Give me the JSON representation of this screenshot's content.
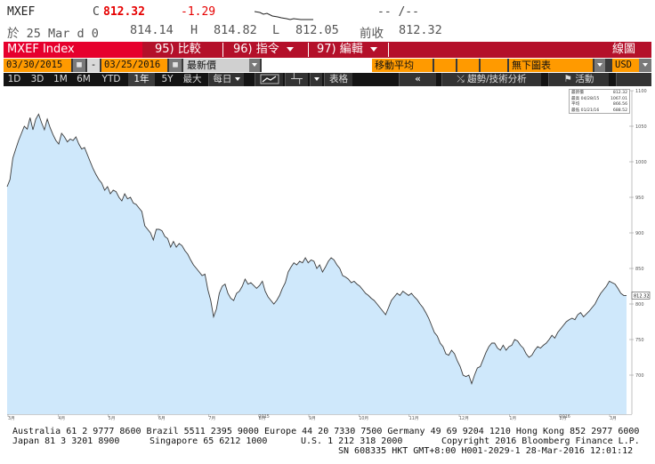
{
  "header": {
    "ticker": "MXEF",
    "close_prefix": "C",
    "last": "812.32",
    "change": "-1.29",
    "sparkline_text": "-- /--",
    "line2": {
      "date_label": "於 25 Mar d 0",
      "open": "814.14",
      "high_label": "H",
      "high": "814.82",
      "low_label": "L",
      "low": "812.05",
      "prev_label": "前收",
      "prev": "812.32"
    }
  },
  "menubar": {
    "ticker": "MXEF Index",
    "items": [
      {
        "num": "95)",
        "label": "比較"
      },
      {
        "num": "96)",
        "label": "指令"
      },
      {
        "num": "97)",
        "label": "編輯"
      }
    ],
    "right_label": "線圖"
  },
  "controls": {
    "start_date": "03/30/2015",
    "dash": "-",
    "end_date": "03/25/2016",
    "price_type": "最新價",
    "moving_avg_label": "移動平均",
    "lower_chart": "無下圖表",
    "currency": "USD"
  },
  "toolbar": {
    "periods": [
      "1D",
      "3D",
      "1M",
      "6M",
      "YTD",
      "1年",
      "5Y",
      "最大"
    ],
    "selected_period": "1年",
    "frequency": "每日",
    "table_label": "表格",
    "nav_left": "«",
    "analysis_label": "趨勢/技術分析",
    "events_label": "活動"
  },
  "colors": {
    "menubar_bg": "#b4102a",
    "ticker_bg": "#e6002d",
    "orange": "#ff9a00",
    "price_up": "#e60000",
    "area_fill": "#cfe8fb",
    "line": "#3a3a3a"
  },
  "legend": {
    "rows": [
      {
        "label": "最新價",
        "value": "812.32"
      },
      {
        "label": "最高 04/28/15",
        "value": "1067.01"
      },
      {
        "label": "平均",
        "value": "866.56"
      },
      {
        "label": "最低 01/21/16",
        "value": "688.52"
      }
    ]
  },
  "chart_data": {
    "type": "area",
    "title": "",
    "xlabel": "",
    "ylabel": "",
    "ylim": [
      645,
      1100
    ],
    "y_ticks": [
      700,
      750,
      800,
      850,
      900,
      950,
      1000,
      1050,
      1100
    ],
    "x_ticks": [
      "3月",
      "4月",
      "5月",
      "6月",
      "7月",
      "8月",
      "9月",
      "10月",
      "11月",
      "12月",
      "1月",
      "2月",
      "3月"
    ],
    "x_year_labels": [
      {
        "after": "8月",
        "label": "2015"
      },
      {
        "after": "2月",
        "label": "2016"
      }
    ],
    "last_value_label": "812.32",
    "grid": false,
    "series": [
      {
        "values": [
          965,
          975,
          1005,
          1018,
          1030,
          1040,
          1050,
          1046,
          1062,
          1045,
          1060,
          1067,
          1055,
          1045,
          1060,
          1048,
          1038,
          1030,
          1025,
          1040,
          1035,
          1028,
          1032,
          1030,
          1035,
          1025,
          1018,
          1020,
          1010,
          1000,
          990,
          982,
          975,
          970,
          960,
          965,
          955,
          960,
          958,
          950,
          945,
          955,
          948,
          950,
          942,
          940,
          935,
          930,
          910,
          905,
          900,
          890,
          905,
          905,
          903,
          895,
          892,
          880,
          888,
          880,
          885,
          882,
          875,
          870,
          862,
          855,
          850,
          845,
          840,
          842,
          820,
          805,
          782,
          793,
          815,
          825,
          828,
          815,
          808,
          805,
          815,
          818,
          825,
          835,
          828,
          830,
          826,
          822,
          826,
          832,
          818,
          810,
          805,
          800,
          805,
          812,
          822,
          830,
          845,
          852,
          858,
          855,
          860,
          858,
          865,
          858,
          862,
          860,
          850,
          855,
          845,
          852,
          860,
          865,
          862,
          855,
          850,
          840,
          838,
          835,
          830,
          832,
          828,
          825,
          820,
          815,
          812,
          808,
          805,
          800,
          795,
          790,
          785,
          795,
          805,
          810,
          815,
          812,
          818,
          815,
          812,
          815,
          810,
          806,
          800,
          795,
          788,
          780,
          770,
          760,
          755,
          745,
          740,
          730,
          728,
          735,
          730,
          720,
          712,
          700,
          698,
          700,
          688,
          700,
          710,
          712,
          722,
          732,
          740,
          745,
          745,
          738,
          735,
          742,
          735,
          740,
          742,
          750,
          748,
          742,
          738,
          730,
          725,
          728,
          735,
          740,
          738,
          742,
          745,
          750,
          756,
          752,
          760,
          765,
          770,
          775,
          778,
          780,
          778,
          785,
          788,
          782,
          786,
          790,
          795,
          800,
          808,
          815,
          820,
          825,
          832,
          830,
          828,
          822,
          815,
          812,
          812
        ]
      }
    ]
  },
  "footer": {
    "line1": "Australia 61 2 9777 8600 Brazil 5511 2395 9000 Europe 44 20 7330 7500 Germany 49 69 9204 1210 Hong Kong 852 2977 6000",
    "line2_left": "Japan 81 3 3201 8900",
    "line2_mid": "Singapore 65 6212 1000",
    "line2_us": "U.S. 1 212 318 2000",
    "line2_right": "Copyright 2016 Bloomberg Finance L.P.",
    "line3": "SN 608335 HKT  GMT+8:00 H001-2029-1 28-Mar-2016 12:01:12"
  }
}
